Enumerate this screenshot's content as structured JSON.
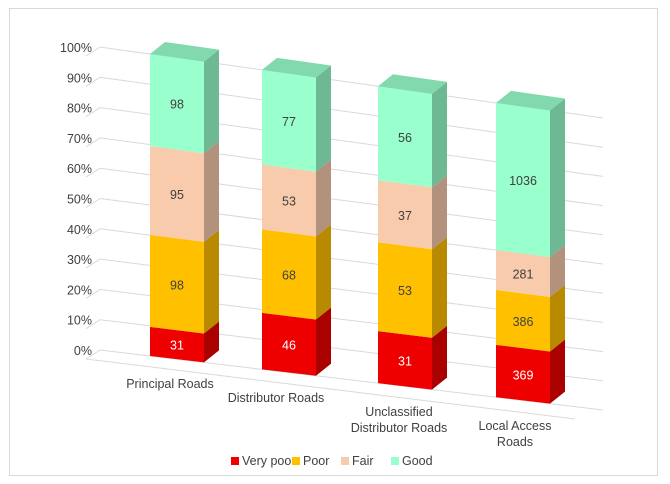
{
  "chart_data": {
    "type": "bar",
    "stacked": "percent",
    "three_d": true,
    "categories": [
      [
        "Principal Roads"
      ],
      [
        "Distributor Roads"
      ],
      [
        "Unclassified",
        "Distributor Roads"
      ],
      [
        "Local Access",
        "Roads"
      ]
    ],
    "series": [
      {
        "name": "Very poor",
        "color": "#ee0000",
        "label_color": "#ffffff",
        "values": [
          31,
          46,
          31,
          369
        ]
      },
      {
        "name": "Poor",
        "color": "#ffc000",
        "label_color": "#404040",
        "values": [
          98,
          68,
          53,
          386
        ]
      },
      {
        "name": "Fair",
        "color": "#f8cbad",
        "label_color": "#404040",
        "values": [
          95,
          53,
          37,
          281
        ]
      },
      {
        "name": "Good",
        "color": "#99ffcc",
        "label_color": "#404040",
        "values": [
          98,
          77,
          56,
          1036
        ]
      }
    ],
    "y_ticks": [
      "0%",
      "10%",
      "20%",
      "30%",
      "40%",
      "50%",
      "60%",
      "70%",
      "80%",
      "90%",
      "100%"
    ],
    "ylim": [
      0,
      100
    ],
    "grid": true,
    "legend_position": "bottom"
  }
}
